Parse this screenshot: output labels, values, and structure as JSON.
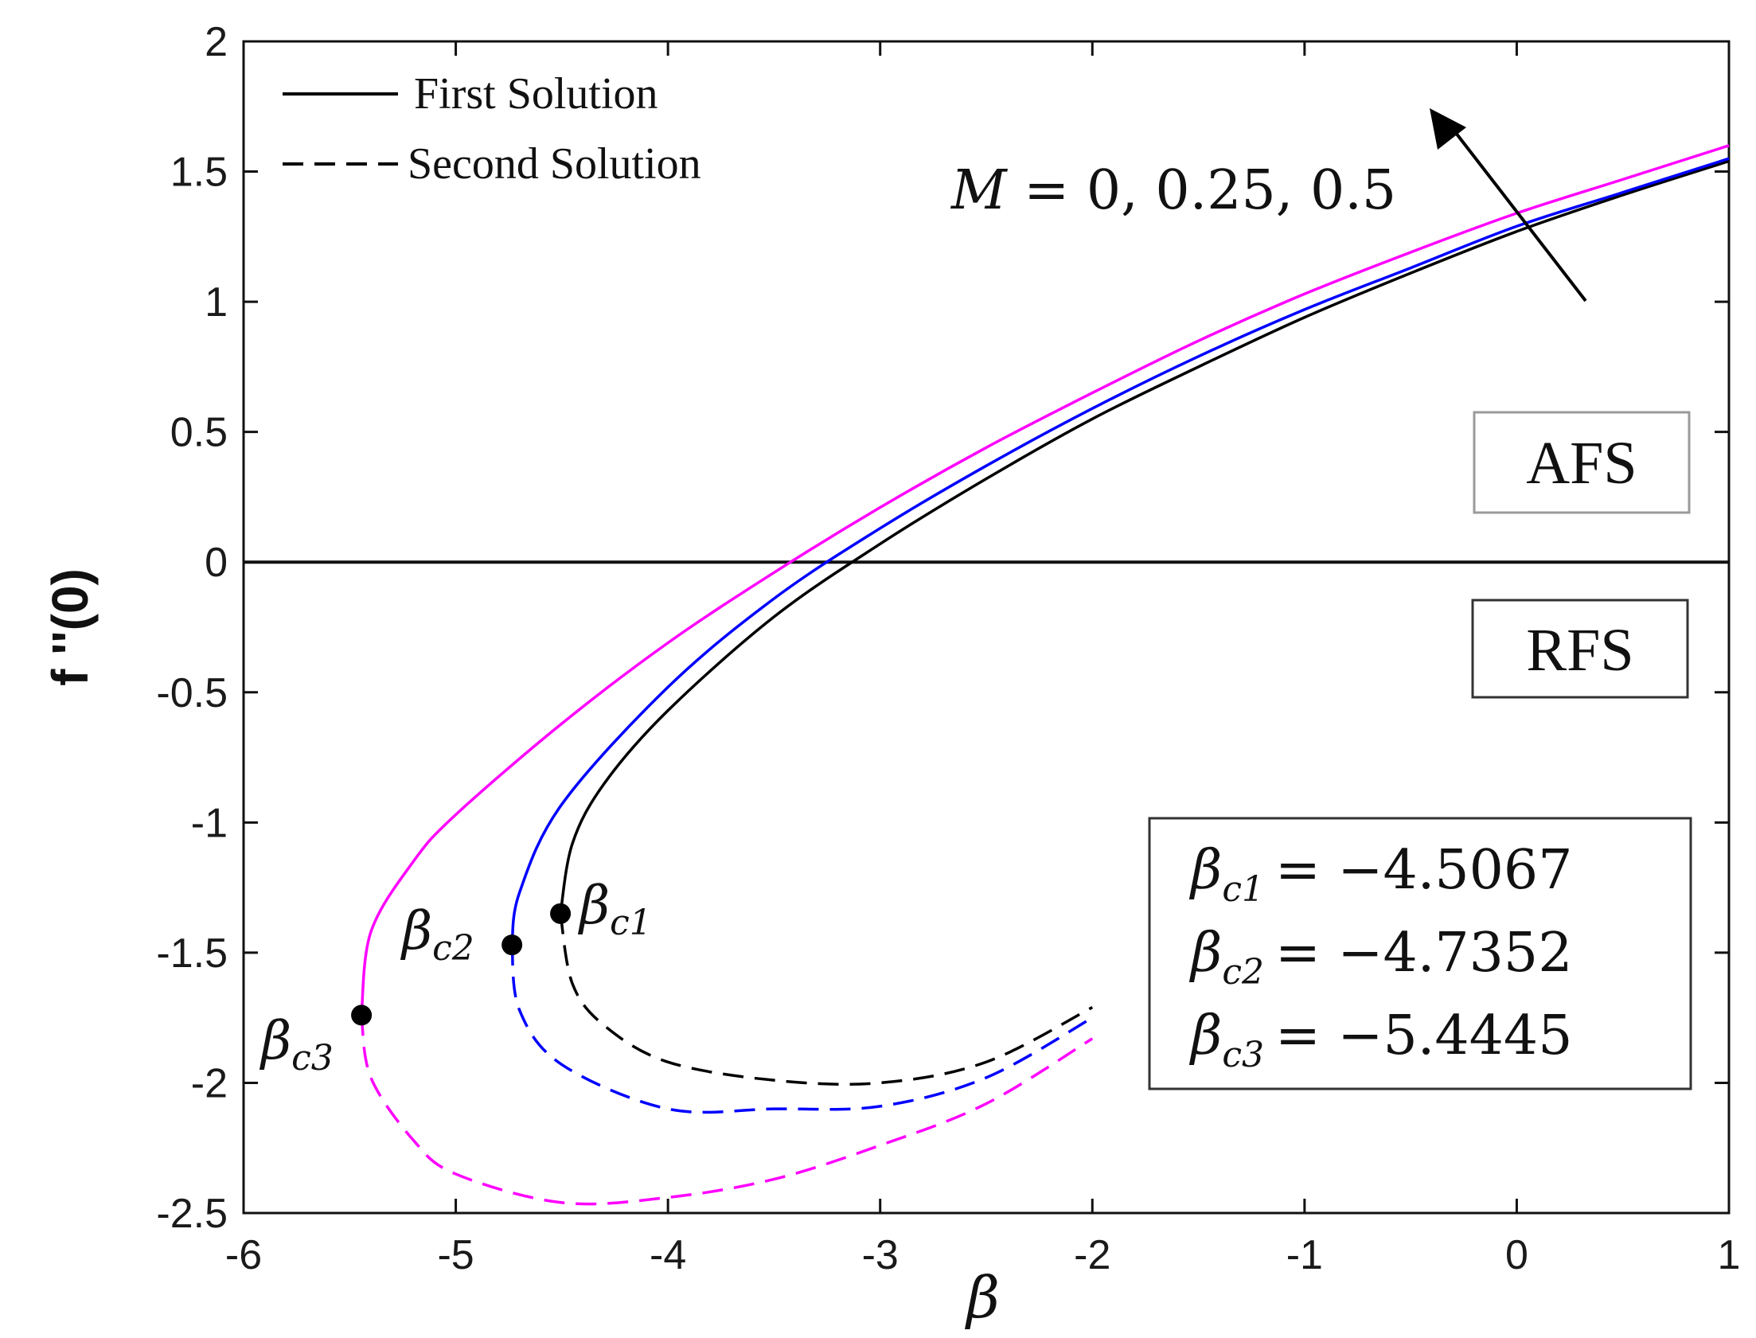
{
  "chart_data": {
    "type": "line",
    "xlabel": "β",
    "ylabel": "f ''(0)",
    "xlim": [
      -6,
      1
    ],
    "ylim": [
      -2.5,
      2
    ],
    "xticks": [
      "-6",
      "-5",
      "-4",
      "-3",
      "-2",
      "-1",
      "0",
      "1"
    ],
    "yticks": [
      "2",
      "1.5",
      "1",
      "0.5",
      "0",
      "-0.5",
      "-1",
      "-1.5",
      "-2",
      "-2.5"
    ],
    "grid": false,
    "legend": {
      "position": "top-left",
      "entries": [
        {
          "label": "First Solution",
          "style": "solid"
        },
        {
          "label": "Second Solution",
          "style": "dashed"
        }
      ]
    },
    "annotation": "M = 0, 0.25, 0.5",
    "regions": [
      "AFS",
      "RFS"
    ],
    "critical_labels": [
      {
        "text": "β",
        "sub": "c1"
      },
      {
        "text": "β",
        "sub": "c2"
      },
      {
        "text": "β",
        "sub": "c3"
      }
    ],
    "critical_box": [
      {
        "text": "β",
        "sub": "c1",
        "value": "= −4.5067"
      },
      {
        "text": "β",
        "sub": "c2",
        "value": "= −4.7352"
      },
      {
        "text": "β",
        "sub": "c3",
        "value": "= −5.4445"
      }
    ],
    "series": [
      {
        "color": "#000000",
        "critical": [
          -4.5067,
          -1.35
        ],
        "first": {
          "x": [
            -4.5067,
            -4.45,
            -4.3,
            -4.0,
            -3.5,
            -3.0,
            -2.5,
            -2.0,
            -1.5,
            -1.0,
            -0.5,
            0.0,
            0.5,
            1.0
          ],
          "y": [
            -1.35,
            -1.08,
            -0.85,
            -0.57,
            -0.21,
            0.07,
            0.32,
            0.55,
            0.75,
            0.94,
            1.11,
            1.27,
            1.41,
            1.54
          ]
        },
        "second": {
          "x": [
            -4.5067,
            -4.45,
            -4.3,
            -4.0,
            -3.5,
            -3.0,
            -2.5,
            -2.0
          ],
          "y": [
            -1.35,
            -1.62,
            -1.78,
            -1.92,
            -1.99,
            -2.0,
            -1.92,
            -1.71
          ]
        }
      },
      {
        "color": "#0000ff",
        "critical": [
          -4.7352,
          -1.47
        ],
        "first": {
          "x": [
            -4.7352,
            -4.7,
            -4.5,
            -4.0,
            -3.5,
            -3.0,
            -2.5,
            -2.0,
            -1.5,
            -1.0,
            -0.5,
            0.0,
            0.5,
            1.0
          ],
          "y": [
            -1.47,
            -1.27,
            -0.93,
            -0.48,
            -0.14,
            0.13,
            0.37,
            0.59,
            0.79,
            0.97,
            1.13,
            1.29,
            1.42,
            1.55
          ]
        },
        "second": {
          "x": [
            -4.7352,
            -4.7,
            -4.5,
            -4.0,
            -3.5,
            -3.0,
            -2.5,
            -2.0
          ],
          "y": [
            -1.47,
            -1.72,
            -1.93,
            -2.1,
            -2.1,
            -2.09,
            -1.98,
            -1.75
          ]
        }
      },
      {
        "color": "#ff00ff",
        "critical": [
          -5.4445,
          -1.74
        ],
        "first": {
          "x": [
            -5.4445,
            -5.4,
            -5.2,
            -5.0,
            -4.5,
            -4.0,
            -3.5,
            -3.0,
            -2.5,
            -2.0,
            -1.5,
            -1.0,
            -0.5,
            0.0,
            0.5,
            1.0
          ],
          "y": [
            -1.74,
            -1.42,
            -1.15,
            -0.97,
            -0.62,
            -0.31,
            -0.04,
            0.21,
            0.44,
            0.65,
            0.85,
            1.03,
            1.19,
            1.34,
            1.47,
            1.6
          ]
        },
        "second": {
          "x": [
            -5.4445,
            -5.4,
            -5.2,
            -5.0,
            -4.5,
            -4.0,
            -3.5,
            -3.0,
            -2.5,
            -2.0
          ],
          "y": [
            -1.74,
            -1.98,
            -2.22,
            -2.35,
            -2.46,
            -2.44,
            -2.37,
            -2.24,
            -2.08,
            -1.83
          ]
        }
      }
    ]
  }
}
